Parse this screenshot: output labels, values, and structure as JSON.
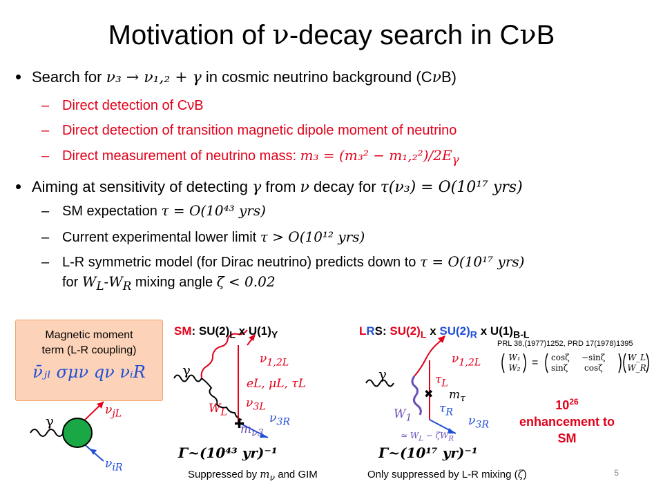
{
  "title": {
    "pre": "Motivation of ",
    "nu": "ν",
    "post": "-decay search in C",
    "nu2": "ν",
    "b": "B"
  },
  "bullet1": {
    "pre": "Search for ",
    "math": "ν₃ → ν₁,₂ + γ",
    "post": " in cosmic neutrino background (C",
    "nu": "ν",
    "end": "B)"
  },
  "sub1": [
    {
      "text": "Direct detection of CνB"
    },
    {
      "text": "Direct detection of transition magnetic dipole moment of neutrino"
    },
    {
      "pre": "Direct measurement of neutrino mass: ",
      "math": "m₃ = (m₃² − m₁,₂²)/2E",
      "sub": "γ"
    }
  ],
  "bullet2": {
    "pre": "Aiming at sensitivity of detecting ",
    "g": "γ",
    "mid": " from ",
    "nu": "ν",
    "mid2": " decay for ",
    "math": "τ(ν₃) = O(10¹⁷ yrs)"
  },
  "sub2": [
    {
      "pre": "SM expectation ",
      "math": "τ = O(10⁴³ yrs)"
    },
    {
      "pre": "Current experimental lower limit ",
      "math": "τ > O(10¹² yrs)"
    },
    {
      "pre": "L-R symmetric model (for Dirac neutrino) predicts down to ",
      "math": "τ = O(10¹⁷ yrs)"
    },
    {
      "pre": "for ",
      "w": "W",
      "wsubL": "L",
      "dash": "-",
      "w2": "W",
      "wsubR": "R",
      "post": " mixing angle ",
      "math": "ζ < 0.02"
    }
  ],
  "callout": {
    "line1": "Magnetic moment",
    "line2": "term (L-R coupling)",
    "formula": "ν̄ⱼₗ σμν qν νᵢR"
  },
  "left_diagram": {
    "gamma": "γ",
    "nu_top": "ν",
    "nu_top_sub": "jL",
    "nu_bot": "ν",
    "nu_bot_sub": "iR"
  },
  "sm": {
    "header_pre": "SM",
    "header_post": ": SU(2)",
    "sub_L": "L",
    "x": " x U(1)",
    "sub_Y": "Y",
    "gamma": "γ",
    "nu12": "ν",
    "nu12_sub": "1,2L",
    "leptons": "e",
    "leptons_full": "eL, μL, τL",
    "nu3L": "ν",
    "nu3L_sub": "3L",
    "WL": "W",
    "WL_sub": "L",
    "nu3R": "ν",
    "nu3R_sub": "3R",
    "mnu": "m",
    "mnu_sub": "ν3",
    "rate": "Γ~(10⁴³ yr)⁻¹",
    "caption_pre": "Suppressed by ",
    "caption_m": "m",
    "caption_msub": "ν",
    "caption_post": " and GIM"
  },
  "lrs": {
    "header_L": "L",
    "header_R": "R",
    "header_S": "S",
    "su2": "SU(2)",
    "x": " x ",
    "u1": " x U(1)",
    "sub_BL": "B-L",
    "gamma": "γ",
    "nu12": "ν",
    "nu12_sub": "1,2L",
    "tauL": "τ",
    "tauL_sub": "L",
    "mtau": "m",
    "mtau_sub": "τ",
    "tauR": "τ",
    "tauR_sub": "R",
    "W1": "W",
    "W1_sub": "1",
    "nu3R": "ν",
    "nu3R_sub": "3R",
    "approx": "≃ W",
    "approx_sub": "L",
    "approx_post": " − ζW",
    "approx_sub2": "R",
    "rate": "Γ~(10¹⁷ yr)⁻¹",
    "caption_pre": "Only suppressed  by L-R mixing (",
    "caption_z": "ζ",
    "caption_post": ")",
    "ref": "PRL 38,(1977)1252, PRD 17(1978)1395",
    "matrix_left": [
      "W₁",
      "W₂"
    ],
    "matrix_mid": [
      "cosζ",
      "−sinζ",
      "sinζ",
      "cosζ"
    ],
    "matrix_right": [
      "W_L",
      "W_R"
    ],
    "enh_num": "10",
    "enh_exp": "26",
    "enh_line2": "enhancement to",
    "enh_line3": "SM"
  },
  "page_number": "5",
  "colors": {
    "red": "#e2001a",
    "blue": "#1f4fd6",
    "callout": "#fcd3b8",
    "green": "#19a845"
  }
}
